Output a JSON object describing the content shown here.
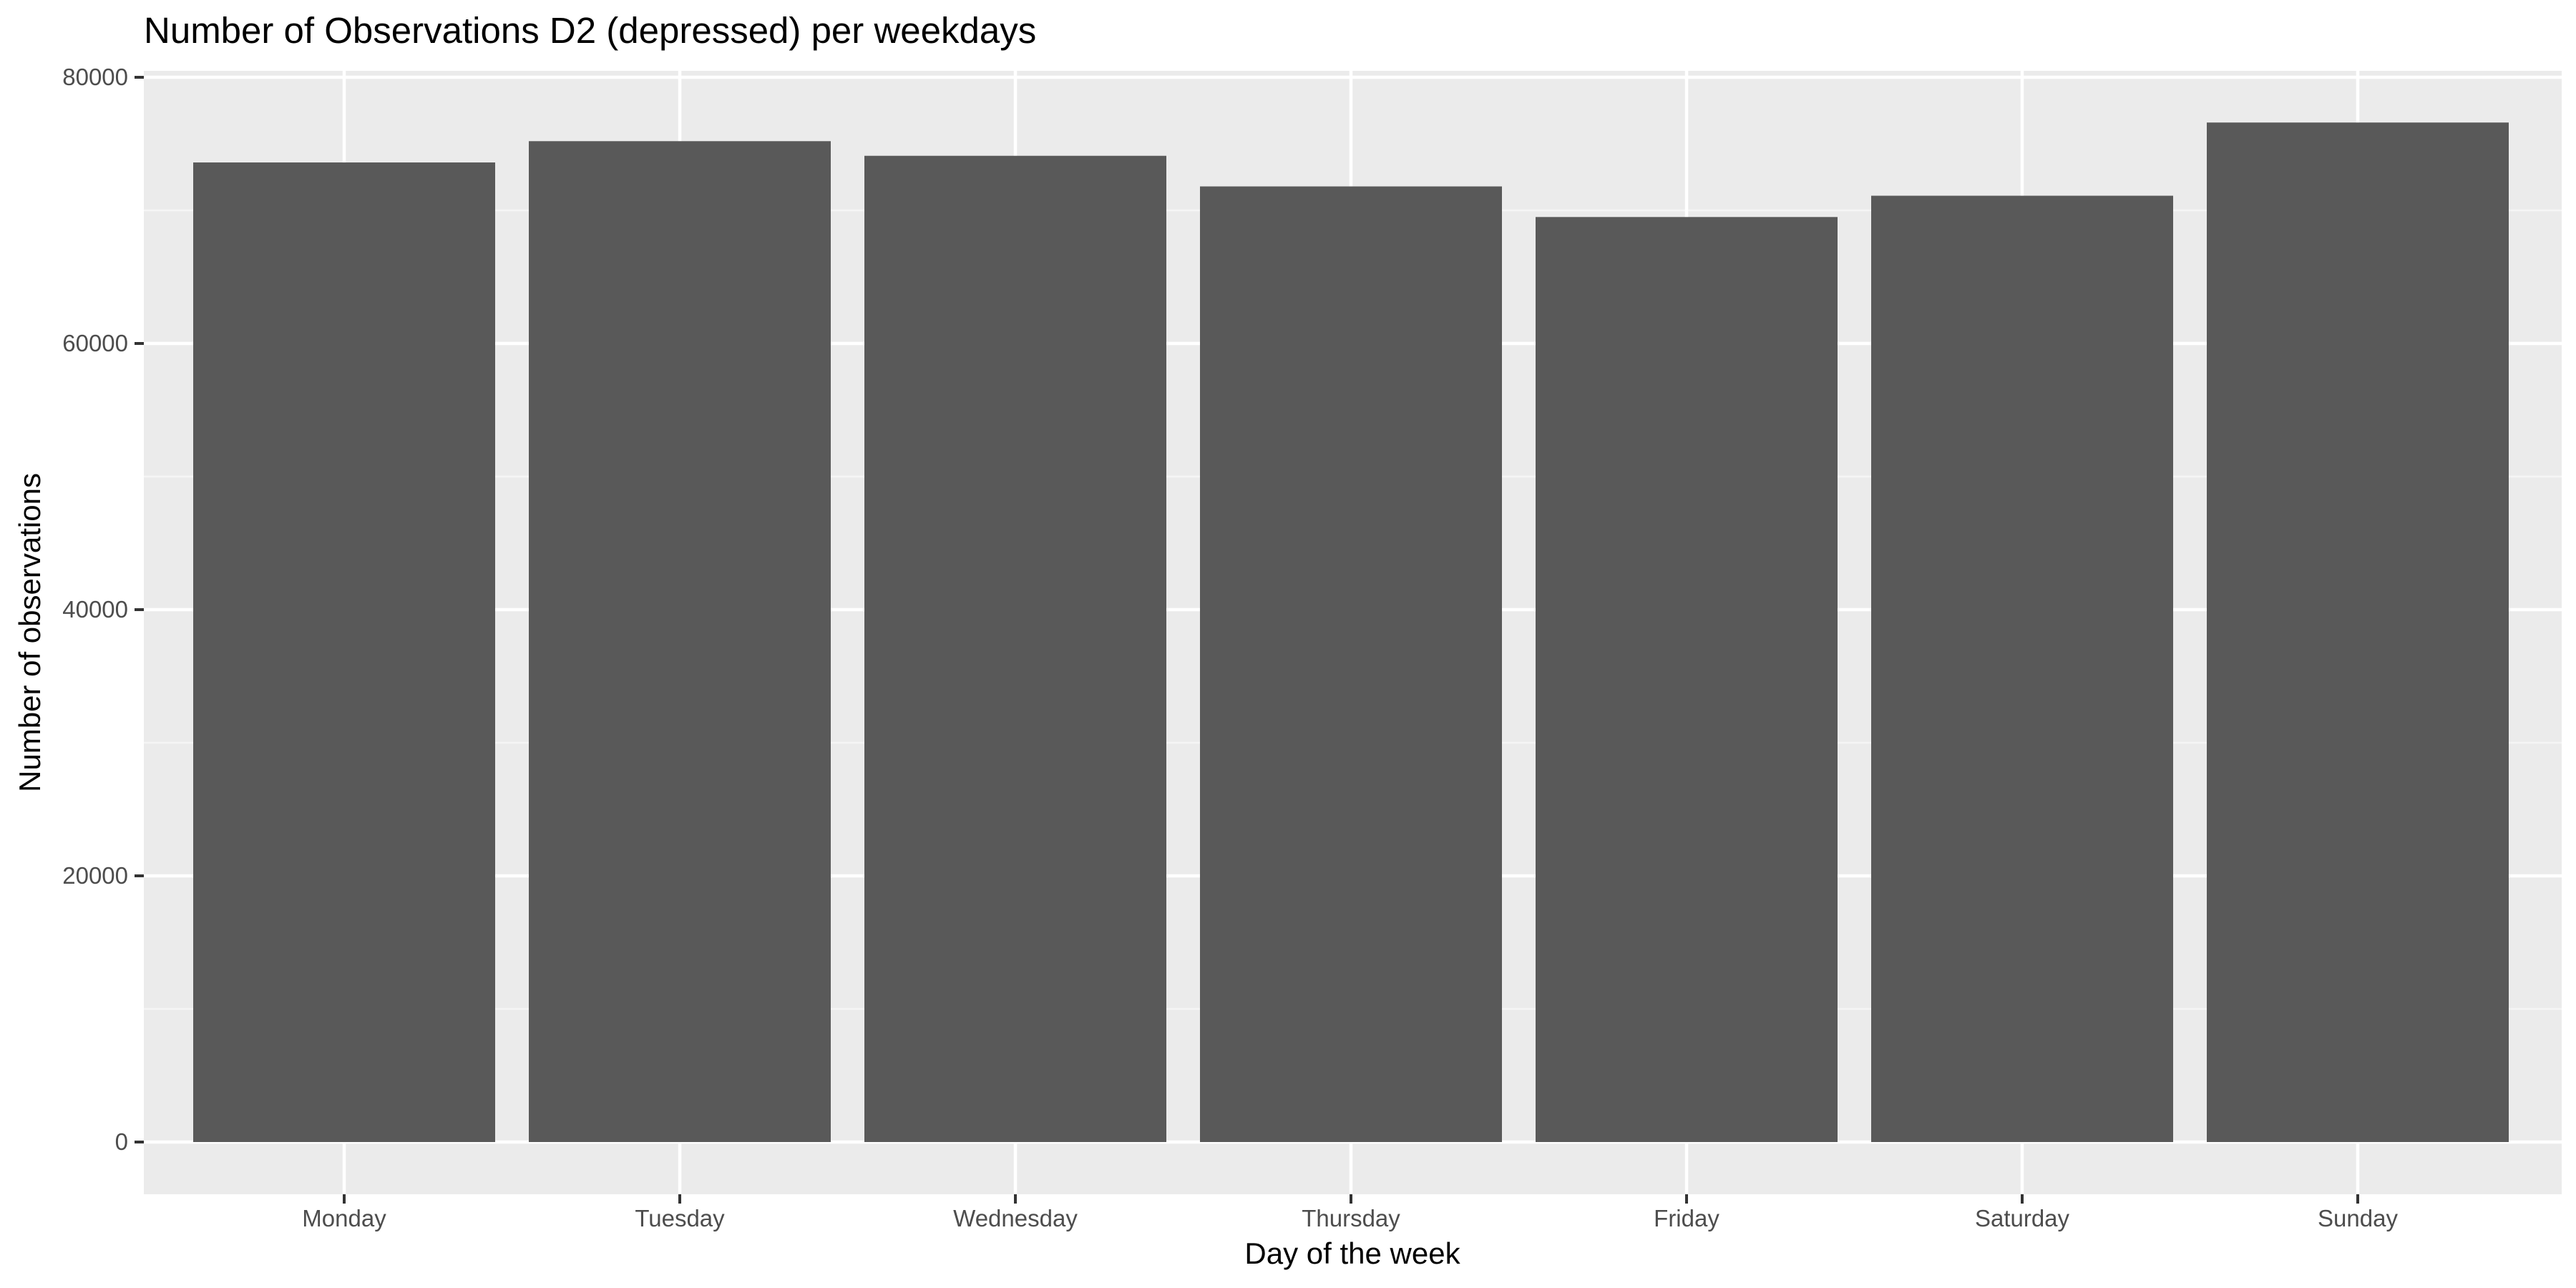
{
  "chart_data": {
    "type": "bar",
    "title": "Number of Observations D2 (depressed) per weekdays",
    "xlabel": "Day of the week",
    "ylabel": "Number of observations",
    "categories": [
      "Monday",
      "Tuesday",
      "Wednesday",
      "Thursday",
      "Friday",
      "Saturday",
      "Sunday"
    ],
    "values": [
      73600,
      75200,
      74100,
      71800,
      69500,
      71100,
      76600
    ],
    "ylim": [
      0,
      80000
    ],
    "yticks": [
      0,
      20000,
      40000,
      60000,
      80000
    ],
    "ytick_labels": [
      "0",
      "20000",
      "40000",
      "60000",
      "80000"
    ],
    "grid": true,
    "legend": "none",
    "colors": {
      "bar": "#595959",
      "panel_background": "#ebebeb",
      "grid_major": "#ffffff",
      "grid_minor": "#f5f5f5",
      "tick_label": "#4d4d4d",
      "tick_mark": "#333333",
      "text": "#000000"
    }
  }
}
